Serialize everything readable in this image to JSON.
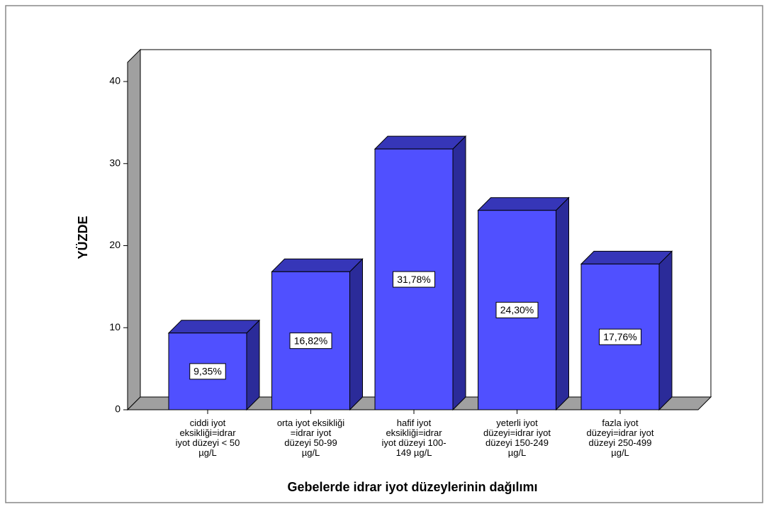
{
  "chart_data": {
    "type": "bar3d",
    "x_label": "Gebelerde idrar iyot düzeylerinin dağılımı",
    "y_label": "YÜZDE",
    "categories": [
      "ciddi iyot\neksikliği=idrar\niyot düzeyi < 50\nµg/L",
      "orta iyot eksikliği\n=idrar iyot\ndüzeyi 50-99\nµg/L",
      "hafif iyot\neksikliği=idrar\niyot düzeyi 100-\n149 µg/L",
      "yeterli iyot\ndüzeyi=idrar iyot\ndüzeyi 150-249\nµg/L",
      "fazla iyot\ndüzeyi=idrar iyot\ndüzeyi  250-499\nµg/L"
    ],
    "values": [
      9.35,
      16.82,
      31.78,
      24.3,
      17.76
    ],
    "value_labels": [
      "9,35%",
      "16,82%",
      "31,78%",
      "24,30%",
      "17,76%"
    ],
    "color": "#5050ff",
    "ylim": [
      0,
      40
    ],
    "yticks": [
      0,
      10,
      20,
      30,
      40
    ]
  }
}
